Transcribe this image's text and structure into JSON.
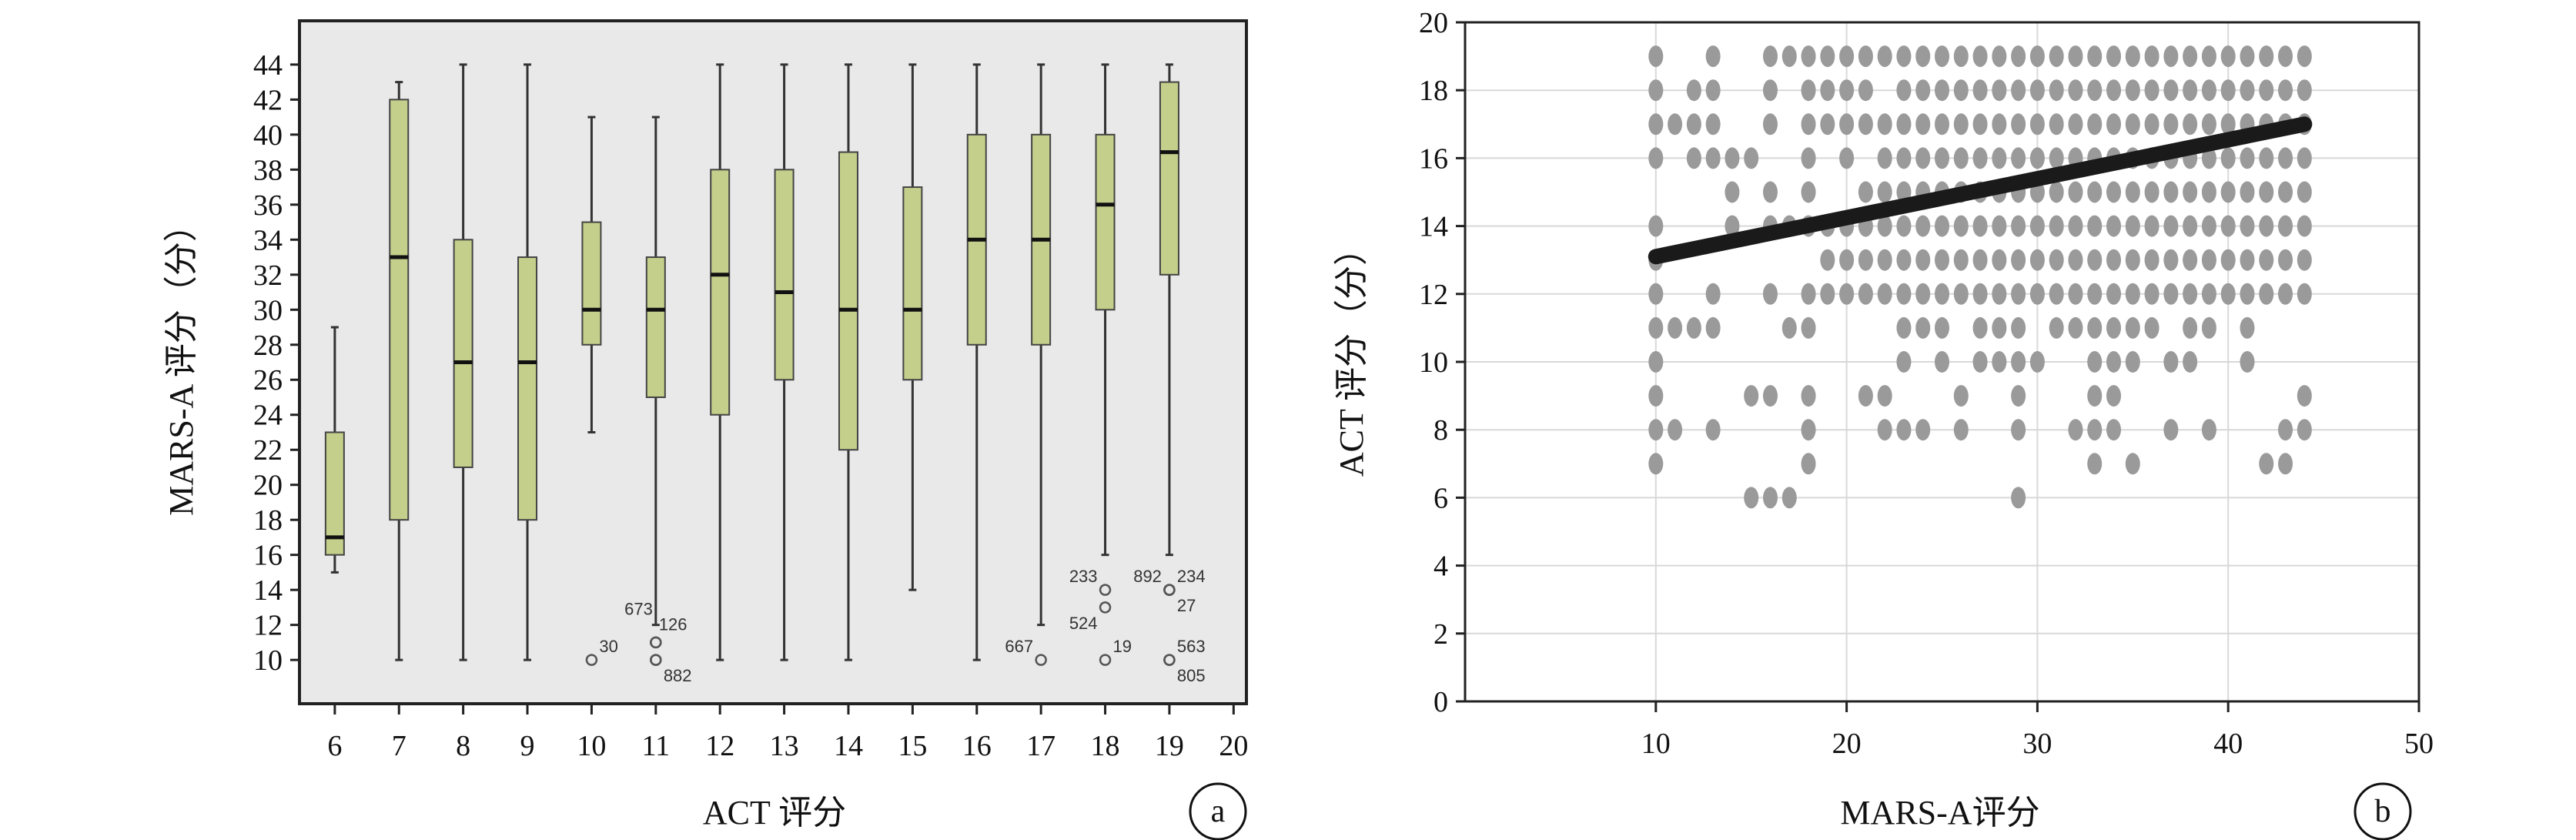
{
  "chart_data": [
    {
      "panel": "a",
      "type": "box",
      "title": "",
      "xlabel": "ACT 评分",
      "ylabel": "MARS-A 评分（分）",
      "x_ticks": [
        "6",
        "7",
        "8",
        "9",
        "10",
        "11",
        "12",
        "13",
        "14",
        "15",
        "16",
        "17",
        "18",
        "19",
        "20"
      ],
      "y_ticks": [
        "10",
        "12",
        "14",
        "16",
        "18",
        "20",
        "22",
        "24",
        "26",
        "28",
        "30",
        "32",
        "34",
        "36",
        "38",
        "40",
        "42",
        "44"
      ],
      "xlim": [
        5.45,
        20.2
      ],
      "ylim": [
        7.5,
        46.5
      ],
      "grid": false,
      "background_color": "#e9e9e9",
      "box_fill": "#c3cf8a",
      "boxes": [
        {
          "x": 6,
          "min": 15,
          "q1": 16,
          "median": 17,
          "q3": 23,
          "max": 29
        },
        {
          "x": 7,
          "min": 10,
          "q1": 18,
          "median": 33,
          "q3": 42,
          "max": 43
        },
        {
          "x": 8,
          "min": 10,
          "q1": 21,
          "median": 27,
          "q3": 34,
          "max": 44
        },
        {
          "x": 9,
          "min": 10,
          "q1": 18,
          "median": 27,
          "q3": 33,
          "max": 44
        },
        {
          "x": 10,
          "min": 23,
          "q1": 28,
          "median": 30,
          "q3": 35,
          "max": 41
        },
        {
          "x": 11,
          "min": 12,
          "q1": 25,
          "median": 30,
          "q3": 33,
          "max": 41
        },
        {
          "x": 12,
          "min": 10,
          "q1": 24,
          "median": 32,
          "q3": 38,
          "max": 44
        },
        {
          "x": 13,
          "min": 10,
          "q1": 26,
          "median": 31,
          "q3": 38,
          "max": 44
        },
        {
          "x": 14,
          "min": 10,
          "q1": 22,
          "median": 30,
          "q3": 39,
          "max": 44
        },
        {
          "x": 15,
          "min": 14,
          "q1": 26,
          "median": 30,
          "q3": 37,
          "max": 44
        },
        {
          "x": 16,
          "min": 10,
          "q1": 28,
          "median": 34,
          "q3": 40,
          "max": 44
        },
        {
          "x": 17,
          "min": 12,
          "q1": 28,
          "median": 34,
          "q3": 40,
          "max": 44
        },
        {
          "x": 18,
          "min": 16,
          "q1": 30,
          "median": 36,
          "q3": 40,
          "max": 44
        },
        {
          "x": 19,
          "min": 16,
          "q1": 32,
          "median": 39,
          "q3": 43,
          "max": 44
        }
      ],
      "outliers": [
        {
          "x": 10,
          "y": 10,
          "label": "30",
          "label_pos": "upper-right"
        },
        {
          "x": 11,
          "y": 11,
          "label": "673",
          "label_pos": "upper-left-high"
        },
        {
          "x": 11,
          "y": 11,
          "label": "126",
          "label_pos": "upper-right-high"
        },
        {
          "x": 11,
          "y": 10,
          "label": "",
          "label_pos": "none"
        },
        {
          "x": 11,
          "y": 10,
          "label": "882",
          "label_pos": "lower-right"
        },
        {
          "x": 17,
          "y": 10,
          "label": "667",
          "label_pos": "upper-left"
        },
        {
          "x": 18,
          "y": 14,
          "label": "233",
          "label_pos": "upper-left"
        },
        {
          "x": 18,
          "y": 13,
          "label": "524",
          "label_pos": "lower-left"
        },
        {
          "x": 18,
          "y": 10,
          "label": "19",
          "label_pos": "upper-right"
        },
        {
          "x": 19,
          "y": 14,
          "label": "892",
          "label_pos": "upper-left"
        },
        {
          "x": 19,
          "y": 14,
          "label": "234",
          "label_pos": "upper-right"
        },
        {
          "x": 19,
          "y": 14,
          "label": "27",
          "label_pos": "lower-right"
        },
        {
          "x": 19,
          "y": 10,
          "label": "563",
          "label_pos": "upper-right"
        },
        {
          "x": 19,
          "y": 10,
          "label": "805",
          "label_pos": "lower-right"
        }
      ]
    },
    {
      "panel": "b",
      "type": "scatter",
      "title": "",
      "xlabel": "MARS-A评分",
      "ylabel": "ACT 评分（分）",
      "x_ticks": [
        "10",
        "20",
        "30",
        "40",
        "50"
      ],
      "y_ticks": [
        "0",
        "2",
        "4",
        "6",
        "8",
        "10",
        "12",
        "14",
        "16",
        "18",
        "20"
      ],
      "xlim": [
        0,
        50
      ],
      "ylim": [
        0,
        20
      ],
      "grid": true,
      "point_color": "#9a9a9a",
      "trend_color": "#1a1a1a",
      "trend_line": {
        "x": [
          10,
          44
        ],
        "y": [
          13.1,
          17.0
        ]
      },
      "points": {
        "19": [
          10,
          13,
          16,
          17,
          18,
          19,
          20,
          21,
          22,
          23,
          24,
          25,
          26,
          27,
          28,
          29,
          30,
          31,
          32,
          33,
          34,
          35,
          36,
          37,
          38,
          39,
          40,
          41,
          42,
          43,
          44
        ],
        "18": [
          10,
          12,
          13,
          16,
          18,
          19,
          20,
          21,
          23,
          24,
          25,
          26,
          27,
          28,
          29,
          30,
          31,
          32,
          33,
          34,
          35,
          36,
          37,
          38,
          39,
          40,
          41,
          42,
          43,
          44
        ],
        "17": [
          10,
          11,
          12,
          13,
          16,
          18,
          19,
          20,
          21,
          22,
          23,
          24,
          25,
          26,
          27,
          28,
          29,
          30,
          31,
          32,
          33,
          34,
          35,
          36,
          37,
          38,
          39,
          40,
          41,
          42,
          43,
          44
        ],
        "16": [
          10,
          12,
          13,
          14,
          15,
          18,
          20,
          22,
          23,
          24,
          25,
          26,
          27,
          28,
          29,
          30,
          31,
          32,
          33,
          34,
          35,
          36,
          37,
          38,
          39,
          40,
          41,
          42,
          43,
          44
        ],
        "15": [
          14,
          16,
          18,
          21,
          22,
          23,
          24,
          25,
          26,
          27,
          28,
          29,
          30,
          31,
          32,
          33,
          34,
          35,
          36,
          37,
          38,
          39,
          40,
          41,
          42,
          43,
          44
        ],
        "14": [
          10,
          14,
          16,
          17,
          18,
          19,
          20,
          21,
          22,
          23,
          24,
          25,
          26,
          27,
          28,
          29,
          30,
          31,
          32,
          33,
          34,
          35,
          36,
          37,
          38,
          39,
          40,
          41,
          42,
          43,
          44
        ],
        "13": [
          10,
          19,
          20,
          21,
          22,
          23,
          24,
          25,
          26,
          27,
          28,
          29,
          30,
          31,
          32,
          33,
          34,
          35,
          36,
          37,
          38,
          39,
          40,
          41,
          42,
          43,
          44
        ],
        "12": [
          10,
          13,
          16,
          18,
          19,
          20,
          21,
          22,
          23,
          24,
          25,
          26,
          27,
          28,
          29,
          30,
          31,
          32,
          33,
          34,
          35,
          36,
          37,
          38,
          39,
          40,
          41,
          42,
          43,
          44
        ],
        "11": [
          10,
          11,
          12,
          13,
          17,
          18,
          23,
          24,
          25,
          27,
          28,
          29,
          31,
          32,
          33,
          34,
          35,
          36,
          38,
          39,
          41
        ],
        "10": [
          10,
          23,
          25,
          27,
          28,
          29,
          30,
          33,
          34,
          35,
          37,
          38,
          41
        ],
        "9": [
          10,
          15,
          16,
          18,
          21,
          22,
          26,
          29,
          33,
          34,
          44
        ],
        "8": [
          10,
          11,
          13,
          18,
          22,
          23,
          24,
          26,
          29,
          32,
          33,
          34,
          37,
          39,
          43,
          44
        ],
        "7": [
          10,
          18,
          33,
          35,
          42,
          43
        ],
        "6": [
          15,
          16,
          17,
          29
        ]
      }
    }
  ]
}
